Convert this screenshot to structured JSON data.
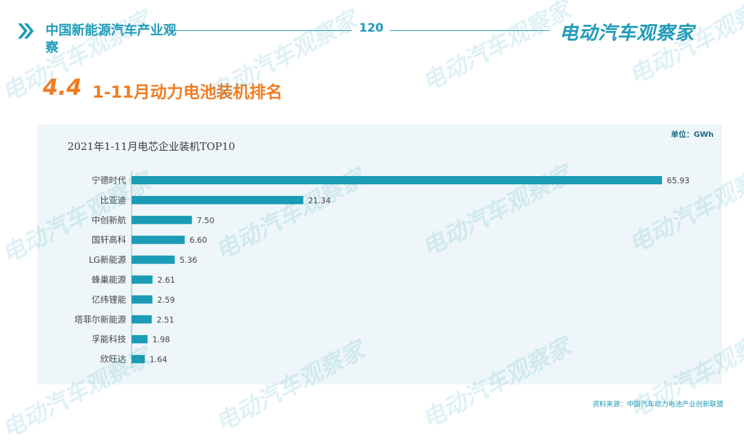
{
  "header": {
    "brand_title": "中国新能源汽车产业观察",
    "page_number": "120",
    "brand_logo": "电动汽车观察家"
  },
  "section": {
    "number": "4.4",
    "title": "1-11月动力电池装机排名"
  },
  "watermark_text": "电动汽车观察家",
  "source_note": "资料来源：中国汽车动力电池产业创新联盟",
  "colors": {
    "accent": "#1f9bb8",
    "section": "#f07c22",
    "bar": "#1b9bb5",
    "panel": "#eef6f9"
  },
  "chart_data": {
    "type": "bar",
    "orientation": "horizontal",
    "title": "2021年1-11月电芯企业装机TOP10",
    "unit": "单位：GWh",
    "categories": [
      "宁德时代",
      "比亚迪",
      "中创新航",
      "国轩高科",
      "LG新能源",
      "蜂巢能源",
      "亿纬锂能",
      "塔菲尔新能源",
      "孚能科技",
      "欣旺达"
    ],
    "values": [
      65.93,
      21.34,
      7.5,
      6.6,
      5.36,
      2.61,
      2.59,
      2.51,
      1.98,
      1.64
    ],
    "value_labels": [
      "65.93",
      "21.34",
      "7.50",
      "6.60",
      "5.36",
      "2.61",
      "2.59",
      "2.51",
      "1.98",
      "1.64"
    ],
    "xlim": [
      0,
      65.93
    ],
    "grid": false,
    "legend": "none"
  }
}
